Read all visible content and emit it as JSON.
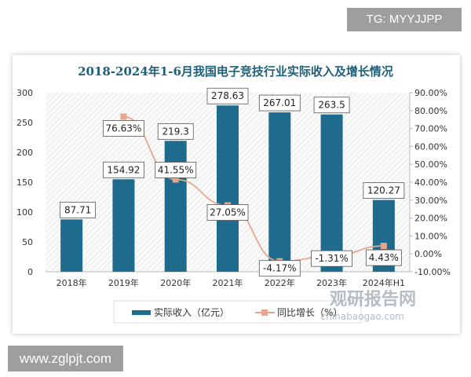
{
  "watermark_top": "TG: MYYJJPP",
  "watermark_bottom": "www.zglpjt.com",
  "source_logo": {
    "name": "观研报告网",
    "url_text": "chinabaogao.com"
  },
  "colors": {
    "bar": "#1f6b8e",
    "line": "#e8a78c",
    "title": "#1f5f78"
  },
  "chart_data": {
    "type": "bar+line",
    "title": "2018-2024年1-6月我国电子竞技行业实际收入及增长情况",
    "categories": [
      "2018年",
      "2019年",
      "2020年",
      "2021年",
      "2022年",
      "2023年",
      "2024年H1"
    ],
    "series": [
      {
        "name": "实际收入（亿元）",
        "type": "bar",
        "axis": "left",
        "values": [
          87.71,
          154.92,
          219.3,
          278.63,
          267.01,
          263.5,
          120.27
        ],
        "labels": [
          "87.71",
          "154.92",
          "219.3",
          "278.63",
          "267.01",
          "263.5",
          "120.27"
        ]
      },
      {
        "name": "同比增长（%）",
        "type": "line",
        "axis": "right",
        "values": [
          null,
          76.63,
          41.55,
          27.05,
          -4.17,
          -1.31,
          4.43
        ],
        "labels": [
          "",
          "76.63%",
          "41.55%",
          "27.05%",
          "-4.17%",
          "-1.31%",
          "4.43%"
        ]
      }
    ],
    "y_left": {
      "range": [
        0,
        300
      ],
      "ticks": [
        "0",
        "50",
        "100",
        "150",
        "200",
        "250",
        "300"
      ]
    },
    "y_right": {
      "range": [
        -10,
        90
      ],
      "ticks": [
        "-10.00%",
        "0.00%",
        "10.00%",
        "20.00%",
        "30.00%",
        "40.00%",
        "50.00%",
        "60.00%",
        "70.00%",
        "80.00%",
        "90.00%"
      ]
    },
    "legend_placement": "bottom",
    "grid": false
  }
}
